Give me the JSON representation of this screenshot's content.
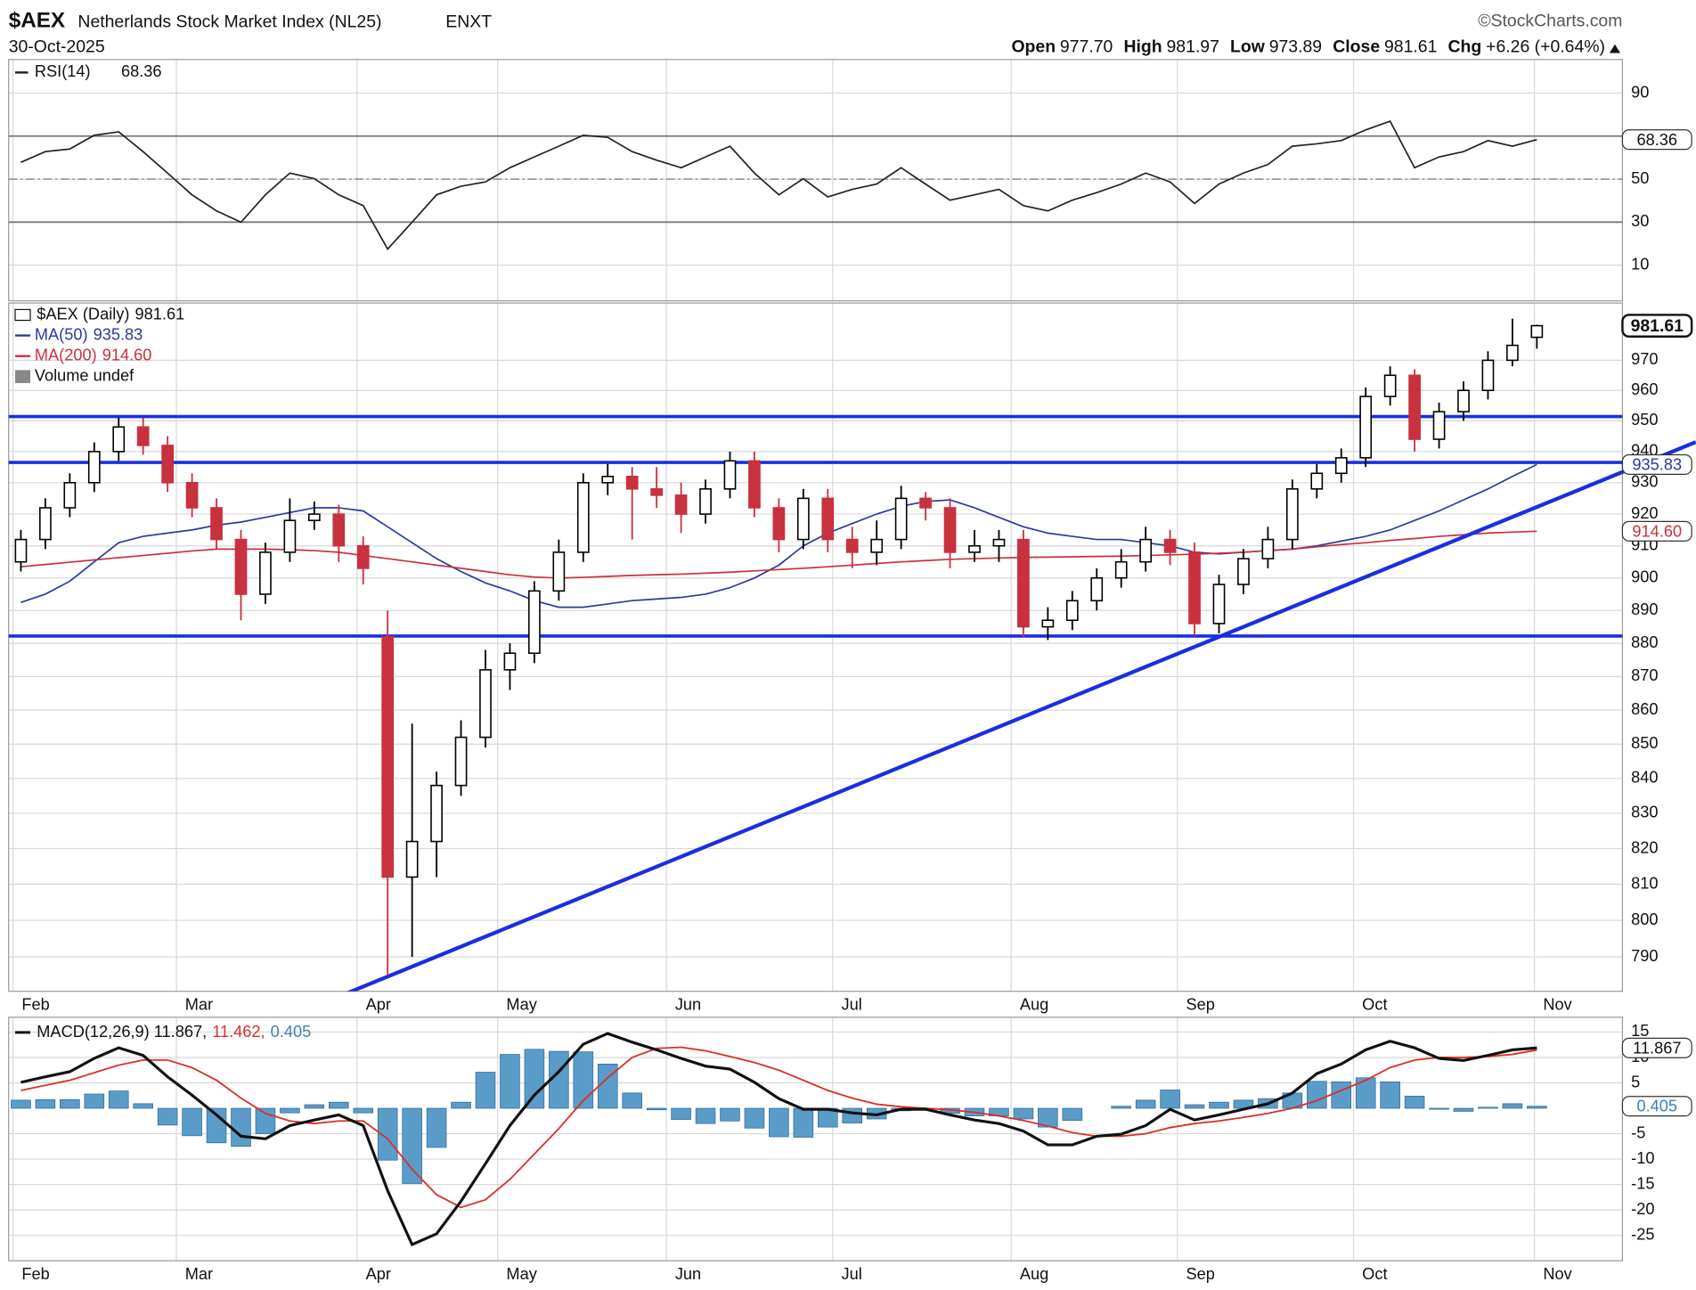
{
  "header": {
    "symbol": "$AEX",
    "name": "Netherlands Stock Market Index (NL25)",
    "exchange": "ENXT",
    "date": "30-Oct-2025",
    "copyright": "©StockCharts.com",
    "quote": [
      {
        "label": "Open",
        "value": "977.70"
      },
      {
        "label": "High",
        "value": "981.97"
      },
      {
        "label": "Low",
        "value": "973.89"
      },
      {
        "label": "Close",
        "value": "981.61"
      },
      {
        "label": "Chg",
        "value": "+6.26 (+0.64%)"
      }
    ]
  },
  "chart_data": [
    {
      "type": "line",
      "name": "RSI(14)",
      "color": "#222222",
      "xlim": [
        0,
        66
      ],
      "ylim": [
        -6.6,
        105.6
      ],
      "yticks": [
        10,
        30,
        50,
        90
      ],
      "bands": [
        30,
        70
      ],
      "midline": 50,
      "values": [
        57.8,
        62.8,
        64,
        70.4,
        72,
        62.8,
        52.8,
        42.7,
        35.2,
        30,
        42.7,
        52.8,
        50.2,
        42.7,
        37.7,
        17.5,
        30,
        42.7,
        46.7,
        48.7,
        55.3,
        60.3,
        65.3,
        70.4,
        69.4,
        62.8,
        58.8,
        55.3,
        60.3,
        65.3,
        52.8,
        42.7,
        50.2,
        41.7,
        45.2,
        47.7,
        55.3,
        47.7,
        40.2,
        42.7,
        45.2,
        37.7,
        35.2,
        40.2,
        43.7,
        47.7,
        52.8,
        48.7,
        38.7,
        47.7,
        52.8,
        56.8,
        65.3,
        66.4,
        67.9,
        72.9,
        76.9,
        55.3,
        60.3,
        62.8,
        67.9,
        65.3,
        68.36
      ]
    },
    {
      "type": "candlestick",
      "name": "$AEX (Daily)",
      "log_scale": true,
      "grid": true,
      "up_color": "#000000",
      "down_color": "#c8313e",
      "xlim": [
        0,
        66
      ],
      "ylim": [
        780.7,
        989.3
      ],
      "yticks": [
        790,
        800,
        810,
        820,
        830,
        840,
        850,
        860,
        870,
        880,
        890,
        900,
        910,
        920,
        930,
        940,
        950,
        960,
        970
      ],
      "xticks": [
        {
          "value": 0.18,
          "label": "Feb"
        },
        {
          "value": 6.86,
          "label": "Mar"
        },
        {
          "value": 14.25,
          "label": "Apr"
        },
        {
          "value": 20.0,
          "label": "May"
        },
        {
          "value": 26.9,
          "label": "Jun"
        },
        {
          "value": 33.7,
          "label": "Jul"
        },
        {
          "value": 41.0,
          "label": "Aug"
        },
        {
          "value": 47.8,
          "label": "Sep"
        },
        {
          "value": 55.0,
          "label": "Oct"
        },
        {
          "value": 62.4,
          "label": "Nov"
        }
      ],
      "categories": [
        null,
        null,
        null,
        null,
        null,
        null,
        null,
        null,
        null,
        null,
        null,
        null,
        null,
        null,
        null,
        null,
        null,
        null,
        null,
        null,
        null,
        null,
        null,
        null,
        null,
        null,
        null,
        null,
        null,
        null,
        null,
        null,
        null,
        null,
        null,
        null,
        null,
        null,
        null,
        null,
        null,
        null,
        null,
        null,
        null,
        null,
        null,
        null,
        null,
        null,
        null,
        null,
        null,
        null,
        null,
        null,
        null,
        null,
        null,
        null,
        null,
        null,
        null
      ],
      "open": [
        905,
        912,
        922,
        930,
        940,
        948,
        942,
        930,
        922,
        912,
        895,
        908,
        918,
        920,
        910,
        882,
        812,
        822,
        838,
        852,
        872,
        877,
        896,
        908,
        930,
        932,
        928,
        926,
        920,
        928,
        937,
        922,
        912,
        925,
        912,
        908,
        912,
        925,
        922,
        908,
        910,
        912,
        885,
        887,
        893,
        900,
        905,
        912,
        908,
        886,
        898,
        906,
        912,
        928,
        933,
        938,
        958,
        965,
        944,
        953,
        960,
        970,
        977.7
      ],
      "high": [
        915,
        925,
        933,
        943,
        951,
        951,
        945,
        933,
        925,
        915,
        911,
        925,
        924,
        923,
        913,
        890,
        856,
        842,
        857,
        878,
        880,
        899,
        912,
        933,
        936,
        935,
        935,
        930,
        931,
        940,
        940,
        925,
        928,
        928,
        916,
        918,
        929,
        927,
        925,
        915,
        915,
        915,
        891,
        896,
        903,
        909,
        916,
        915,
        911,
        901,
        909,
        916,
        931,
        936,
        941,
        961,
        968,
        967,
        956,
        963,
        973,
        984,
        981.97
      ],
      "low": [
        902,
        909,
        919,
        927,
        937,
        939,
        927,
        919,
        909,
        887,
        892,
        905,
        915,
        905,
        898,
        785,
        790,
        812,
        835,
        849,
        866,
        874,
        893,
        905,
        926,
        912,
        922,
        914,
        917,
        925,
        919,
        908,
        909,
        908,
        903,
        904,
        909,
        918,
        903,
        905,
        905,
        882,
        881,
        884,
        890,
        897,
        902,
        904,
        882,
        883,
        895,
        903,
        909,
        925,
        930,
        935,
        955,
        940,
        941,
        950,
        957,
        968,
        973.89
      ],
      "close": [
        912,
        922,
        930,
        940,
        948,
        942,
        930,
        922,
        912,
        895,
        908,
        918,
        920,
        910,
        903,
        812,
        822,
        838,
        852,
        872,
        877,
        896,
        908,
        930,
        932,
        928,
        926,
        920,
        928,
        937,
        922,
        912,
        925,
        912,
        908,
        912,
        925,
        922,
        908,
        910,
        912,
        885,
        887,
        893,
        900,
        905,
        912,
        908,
        886,
        898,
        906,
        912,
        928,
        933,
        938,
        958,
        965,
        944,
        953,
        960,
        970,
        975,
        981.61
      ],
      "series": [
        {
          "name": "MA(50)",
          "color": "#2a3aa0",
          "value_label": "935.83",
          "values": [
            892.5,
            895,
            899,
            905,
            911,
            913,
            914,
            915,
            916.5,
            917.5,
            919,
            920.5,
            922,
            922,
            921,
            916,
            911,
            906,
            902,
            898.5,
            896,
            893,
            891,
            891,
            892,
            893,
            893.5,
            894,
            895,
            897,
            900,
            904,
            910,
            914,
            917,
            920,
            922.5,
            924,
            924.5,
            922,
            919,
            916,
            914,
            913,
            912,
            912,
            911,
            910,
            908,
            907.5,
            908,
            908.5,
            909,
            910,
            911.5,
            913,
            915,
            918,
            921,
            924.5,
            928,
            932,
            935.83
          ]
        },
        {
          "name": "MA(200)",
          "color": "#c8313e",
          "value_label": "914.60",
          "values": [
            903.5,
            904.2,
            904.9,
            905.6,
            906.3,
            907,
            907.7,
            908.4,
            909,
            909,
            909,
            908.8,
            908.5,
            908,
            907,
            906,
            905,
            904,
            903,
            902,
            901,
            900.3,
            900,
            900.2,
            900.5,
            900.8,
            901,
            901.2,
            901.5,
            901.8,
            902.2,
            902.6,
            903,
            903.5,
            904,
            904.5,
            905,
            905.4,
            905.8,
            906,
            906.2,
            906.4,
            906.5,
            906.6,
            906.7,
            906.8,
            907,
            907.2,
            907.4,
            907.7,
            908,
            908.5,
            909,
            909.7,
            910.4,
            911,
            911.7,
            912.3,
            913,
            913.5,
            914,
            914.3,
            914.6
          ]
        }
      ],
      "close_label": "981.61",
      "volume_legend": "Volume undef",
      "hlines": [
        951.4,
        936.5,
        882.2
      ],
      "line_color": "#1a2ee0",
      "trendline": {
        "x": [
          12.83,
          69.0
        ],
        "y": [
          777.5,
          943.1
        ]
      }
    },
    {
      "type": "line",
      "name": "MACD(12,26,9)",
      "xlim": [
        0,
        66
      ],
      "ylim": [
        -30,
        17.9
      ],
      "yticks": [
        15,
        10,
        5,
        -5,
        -10,
        -15,
        -20,
        -25
      ],
      "xticks": [
        {
          "value": 0.18,
          "label": "Feb"
        },
        {
          "value": 6.86,
          "label": "Mar"
        },
        {
          "value": 14.25,
          "label": "Apr"
        },
        {
          "value": 20.0,
          "label": "May"
        },
        {
          "value": 26.9,
          "label": "Jun"
        },
        {
          "value": 33.7,
          "label": "Jul"
        },
        {
          "value": 41.0,
          "label": "Aug"
        },
        {
          "value": 47.8,
          "label": "Sep"
        },
        {
          "value": 55.0,
          "label": "Oct"
        },
        {
          "value": 62.4,
          "label": "Nov"
        }
      ],
      "legend": [
        {
          "text": "MACD(12,26,9) 11.867,",
          "color": "#111111"
        },
        {
          "text": "11.462,",
          "color": "#d9302a"
        },
        {
          "text": "0.405",
          "color": "#3f7fb5"
        }
      ],
      "series": [
        {
          "kind": "histogram",
          "color": "#5b9bc8",
          "value_label": "0.405",
          "values": [
            1.6,
            1.7,
            1.7,
            2.8,
            3.4,
            0.9,
            -3.3,
            -5.4,
            -6.8,
            -7.5,
            -5,
            -0.9,
            0.7,
            1.2,
            -0.9,
            -10.2,
            -14.8,
            -7.7,
            1.2,
            7.1,
            10.6,
            11.6,
            11.2,
            11.1,
            8.7,
            3,
            -0.3,
            -2.2,
            -3,
            -2.5,
            -3.9,
            -5.6,
            -5.7,
            -3.7,
            -2.9,
            -2.1,
            -0.5,
            -0.2,
            -1,
            -1.5,
            -1.5,
            -2.1,
            -3.7,
            -2.4,
            0,
            0.4,
            1.6,
            3.6,
            0.7,
            1.2,
            1.6,
            1.9,
            3,
            5.3,
            5.2,
            6,
            5.2,
            2.4,
            -0.2,
            -0.6,
            0.2,
            0.9,
            0.405
          ]
        },
        {
          "kind": "line",
          "color": "#d9302a",
          "values": [
            3.5,
            4.5,
            5.5,
            7,
            8.5,
            9.5,
            9.5,
            8,
            5.5,
            2,
            -1,
            -2.5,
            -3,
            -2.5,
            -2.5,
            -6,
            -12,
            -17,
            -19.5,
            -18,
            -14,
            -9,
            -4,
            1.5,
            6,
            10,
            11.8,
            12,
            11.3,
            10.2,
            9,
            7.5,
            5.5,
            3.5,
            2,
            0.8,
            0.3,
            0,
            -0.3,
            -0.8,
            -1.5,
            -2.4,
            -3.5,
            -4.8,
            -5.5,
            -5.5,
            -5,
            -3.8,
            -3,
            -2.5,
            -1.8,
            -1,
            0,
            1.5,
            3.5,
            5.5,
            8,
            9.5,
            10,
            10,
            10.2,
            10.6,
            11.462
          ]
        },
        {
          "kind": "line",
          "color": "#111111",
          "value_label": "11.867",
          "values": [
            5.1,
            6.2,
            7.2,
            9.8,
            11.9,
            10.4,
            6.2,
            2.6,
            -1.3,
            -5.5,
            -6,
            -3.4,
            -2.3,
            -1.3,
            -3.4,
            -16.2,
            -26.8,
            -24.7,
            -18.3,
            -10.9,
            -3.4,
            2.6,
            7.2,
            12.6,
            14.7,
            13,
            11.5,
            9.8,
            8.3,
            7.7,
            5.1,
            1.9,
            -0.2,
            -0.2,
            -0.9,
            -1.3,
            -0.2,
            -0.2,
            -1.3,
            -2.3,
            -3,
            -4.5,
            -7.2,
            -7.2,
            -5.5,
            -5.1,
            -3.4,
            -0.2,
            -2.3,
            -1.3,
            -0.2,
            0.9,
            3,
            6.8,
            8.7,
            11.5,
            13.2,
            11.9,
            9.8,
            9.4,
            10.4,
            11.5,
            11.867
          ]
        }
      ]
    }
  ]
}
